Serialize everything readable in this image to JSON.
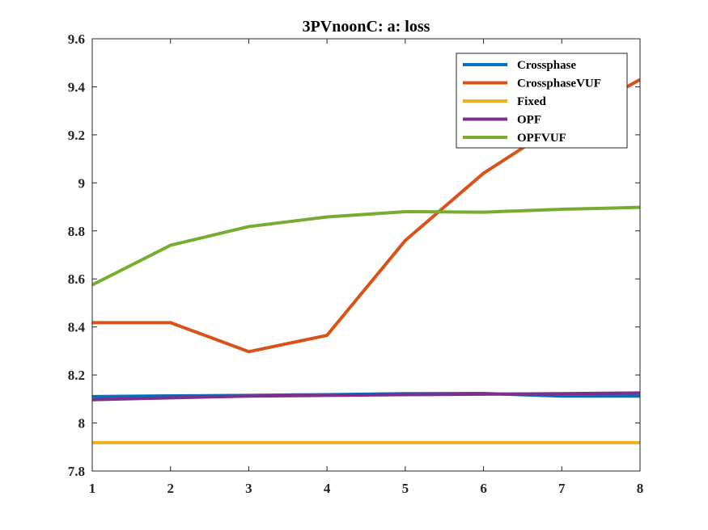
{
  "chart_data": {
    "type": "line",
    "title": "3PVnoonC: a: loss",
    "xlabel": "",
    "ylabel": "",
    "x": [
      1,
      2,
      3,
      4,
      5,
      6,
      7,
      8
    ],
    "xlim": [
      1,
      8
    ],
    "ylim": [
      7.8,
      9.6
    ],
    "xticks": [
      "1",
      "2",
      "3",
      "4",
      "5",
      "6",
      "7",
      "8"
    ],
    "yticks": [
      "7.8",
      "8",
      "8.2",
      "8.4",
      "8.6",
      "8.8",
      "9",
      "9.2",
      "9.4",
      "9.6"
    ],
    "grid": false,
    "legend_position": "top-right",
    "series": [
      {
        "name": "Crossphase",
        "color": "#0072BD",
        "values": [
          8.11,
          8.113,
          8.115,
          8.118,
          8.122,
          8.123,
          8.112,
          8.112
        ]
      },
      {
        "name": "CrossphaseVUF",
        "color": "#D95319",
        "values": [
          8.418,
          8.418,
          8.297,
          8.365,
          8.76,
          9.04,
          9.25,
          9.43
        ]
      },
      {
        "name": "Fixed",
        "color": "#EDB120",
        "values": [
          7.918,
          7.918,
          7.918,
          7.918,
          7.918,
          7.918,
          7.918,
          7.918
        ]
      },
      {
        "name": "OPF",
        "color": "#7E2F8E",
        "values": [
          8.097,
          8.105,
          8.112,
          8.115,
          8.118,
          8.12,
          8.122,
          8.125
        ]
      },
      {
        "name": "OPFVUF",
        "color": "#77AC30",
        "values": [
          8.575,
          8.74,
          8.818,
          8.858,
          8.88,
          8.878,
          8.89,
          8.898
        ]
      }
    ]
  }
}
